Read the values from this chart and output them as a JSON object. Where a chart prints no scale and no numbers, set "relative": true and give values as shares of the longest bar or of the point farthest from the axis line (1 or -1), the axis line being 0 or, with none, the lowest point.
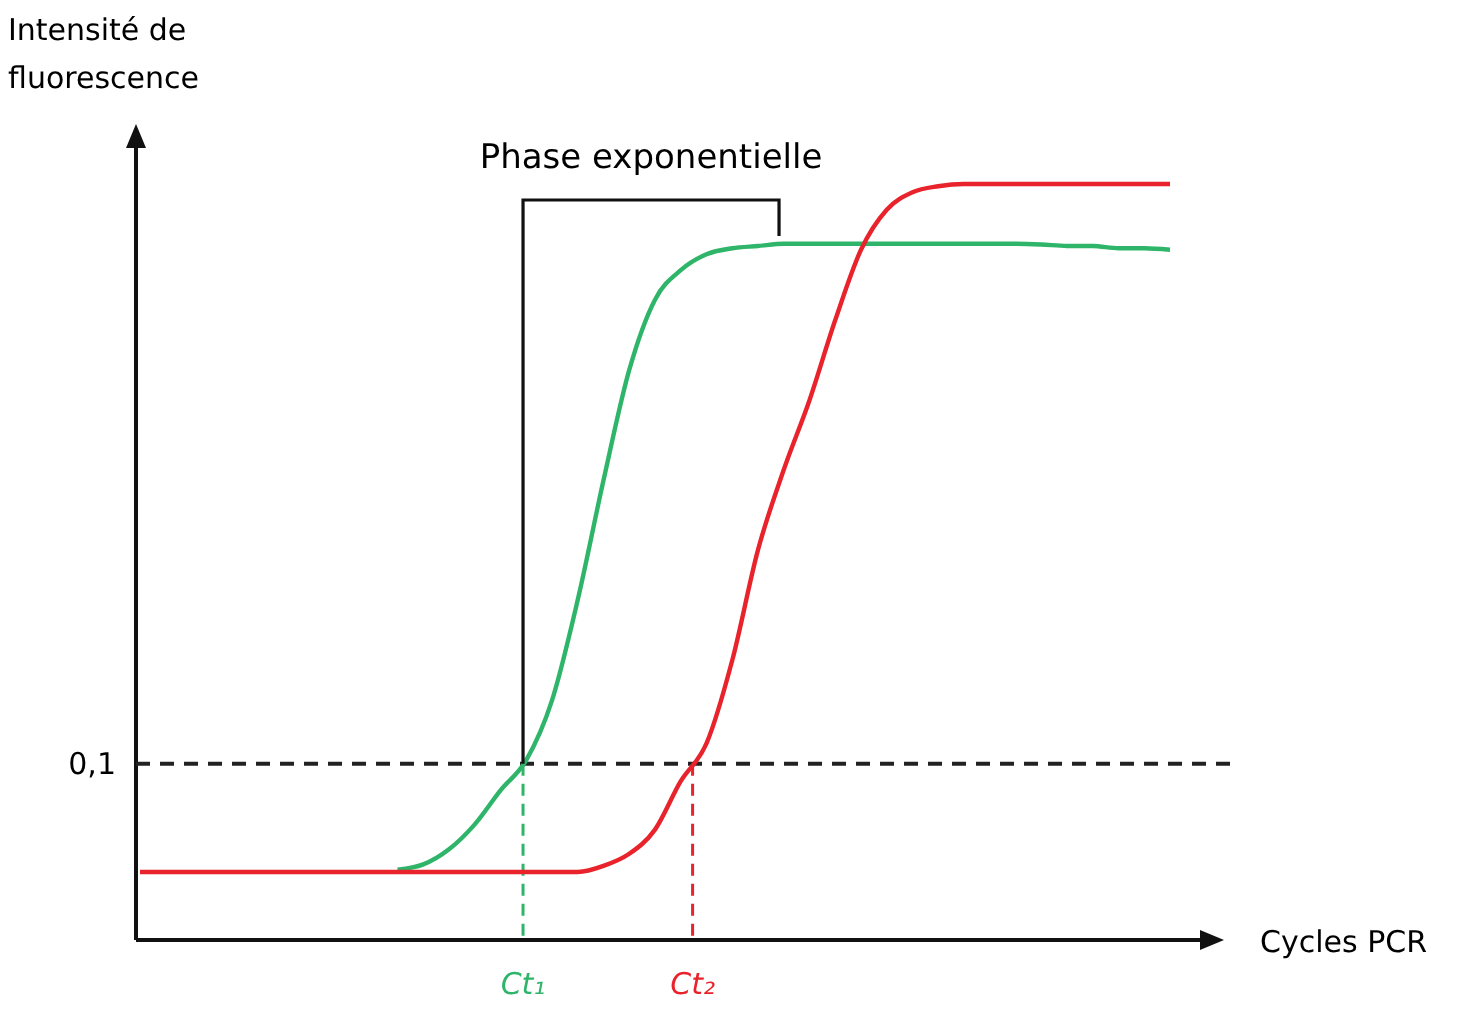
{
  "chart_data": {
    "type": "line",
    "relative": true,
    "xlabel": "Cycles PCR",
    "ylabel": "Intensité de fluorescence",
    "categories": [
      null,
      null,
      null,
      null,
      null,
      null,
      null,
      null,
      null,
      null,
      null,
      null,
      null,
      null,
      null,
      null,
      null,
      null,
      null,
      null,
      null,
      null,
      null,
      null,
      null,
      null,
      null,
      null,
      null,
      null,
      null,
      null,
      null,
      null,
      null,
      null,
      null,
      null,
      null,
      null,
      null
    ],
    "series": [
      {
        "color": "#2fb56a",
        "values": [
          null,
          null,
          null,
          null,
          null,
          null,
          null,
          null,
          null,
          null,
          0.093,
          0.1,
          0.12,
          0.153,
          0.198,
          0.238,
          0.317,
          0.45,
          0.608,
          0.754,
          0.847,
          0.886,
          0.907,
          0.915,
          0.918,
          0.921,
          0.921,
          0.921,
          0.921,
          0.921,
          0.921,
          0.921,
          0.921,
          0.921,
          0.921,
          0.92,
          0.918,
          0.918,
          0.915,
          0.915,
          0.913
        ]
      },
      {
        "color": "#e8232b",
        "values": [
          0.09,
          0.09,
          0.09,
          0.09,
          0.09,
          0.09,
          0.09,
          0.09,
          0.09,
          0.09,
          0.09,
          0.09,
          0.09,
          0.09,
          0.09,
          0.09,
          0.09,
          0.09,
          0.098,
          0.114,
          0.146,
          0.21,
          0.26,
          0.37,
          0.516,
          0.622,
          0.714,
          0.82,
          0.913,
          0.966,
          0.989,
          0.997,
          1.0,
          1.0,
          1.0,
          1.0,
          1.0,
          1.0,
          1.0,
          1.0,
          1.0
        ]
      }
    ],
    "ref_lines": [
      {
        "axis": "y",
        "value": 0.233,
        "color": "#222222",
        "line_style": "dashed"
      }
    ],
    "annotations": [
      "Phase exponentielle",
      "Ct₁",
      "Ct₂",
      "0,1"
    ]
  }
}
